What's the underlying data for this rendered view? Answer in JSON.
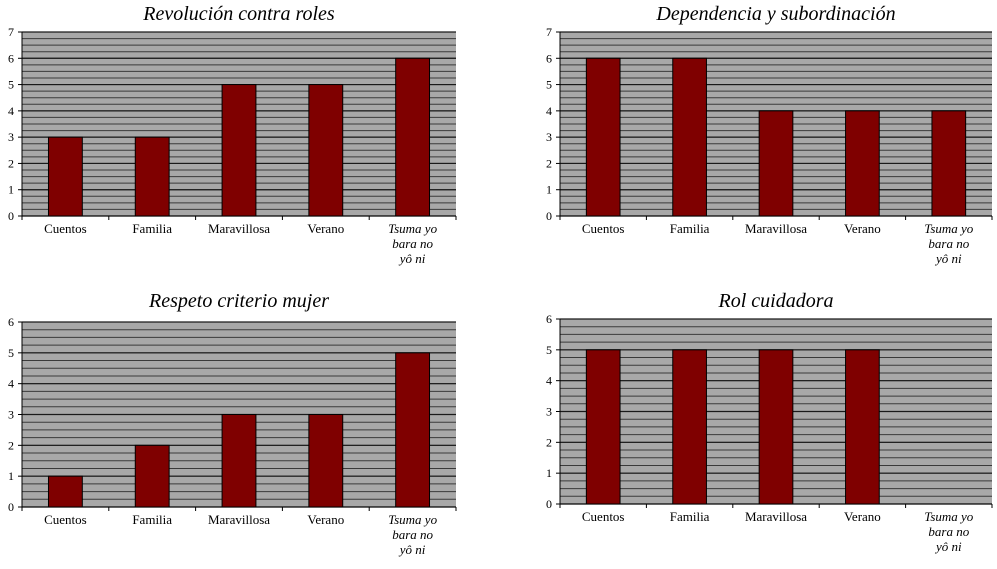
{
  "chart_data": [
    {
      "type": "bar",
      "title": "Revolución contra roles",
      "categories": [
        "Cuentos",
        "Familia",
        "Maravillosa",
        "Verano",
        "Tsuma yo bara no yô ni"
      ],
      "values": [
        3,
        3,
        5,
        5,
        6
      ],
      "ylim": [
        0,
        7
      ],
      "yticks": [
        "0",
        "1",
        "2",
        "3",
        "4",
        "5",
        "6",
        "7"
      ],
      "grid": true,
      "legend": "none"
    },
    {
      "type": "bar",
      "title": "Dependencia y subordinación",
      "categories": [
        "Cuentos",
        "Familia",
        "Maravillosa",
        "Verano",
        "Tsuma yo bara no yô ni"
      ],
      "values": [
        6,
        6,
        4,
        4,
        4
      ],
      "ylim": [
        0,
        7
      ],
      "yticks": [
        "0",
        "1",
        "2",
        "3",
        "4",
        "5",
        "6",
        "7"
      ],
      "grid": true,
      "legend": "none"
    },
    {
      "type": "bar",
      "title": "Respeto criterio mujer",
      "categories": [
        "Cuentos",
        "Familia",
        "Maravillosa",
        "Verano",
        "Tsuma yo bara no yô ni"
      ],
      "values": [
        1,
        2,
        3,
        3,
        5
      ],
      "ylim": [
        0,
        6
      ],
      "yticks": [
        "0",
        "1",
        "2",
        "3",
        "4",
        "5",
        "6"
      ],
      "grid": true,
      "legend": "none"
    },
    {
      "type": "bar",
      "title": "Rol cuidadora",
      "categories": [
        "Cuentos",
        "Familia",
        "Maravillosa",
        "Verano",
        "Tsuma yo bara no yô ni"
      ],
      "values": [
        5,
        5,
        5,
        5,
        0
      ],
      "ylim": [
        0,
        6
      ],
      "yticks": [
        "0",
        "1",
        "2",
        "3",
        "4",
        "5",
        "6"
      ],
      "grid": true,
      "legend": "none"
    }
  ],
  "style": {
    "bar_color": "#7f0000",
    "plot_background": "#a8a8a8",
    "grid_line_color": "#3a3a3a",
    "axis_color": "#000000"
  }
}
